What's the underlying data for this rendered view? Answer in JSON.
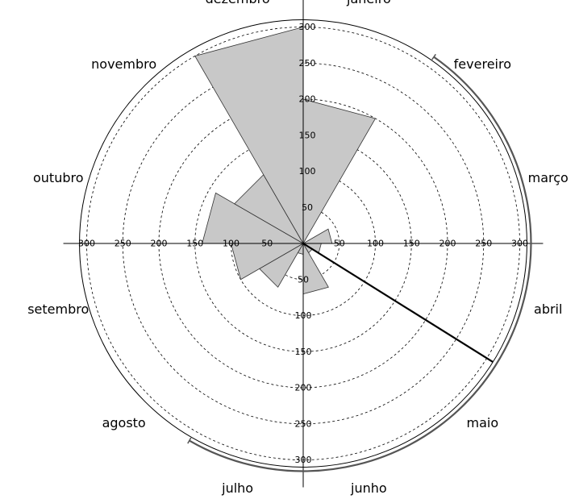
{
  "chart_data": {
    "type": "polar-bar",
    "title": "",
    "direction": "clockwise",
    "start_angle_deg": 0,
    "categories": [
      "janeiro",
      "fevereiro",
      "março",
      "abril",
      "maio",
      "junho",
      "julho",
      "agosto",
      "setembro",
      "outubro",
      "novembro",
      "dezembro"
    ],
    "values": [
      200,
      0,
      40,
      25,
      15,
      70,
      15,
      70,
      100,
      140,
      110,
      300
    ],
    "radial_range": [
      0,
      300
    ],
    "radial_ticks": [
      50,
      100,
      150,
      200,
      250,
      300
    ],
    "outer_circle": 310,
    "grid": "dashed circles",
    "fill_color": "#c8c8c8",
    "edge_color": "#333333",
    "direction_line": {
      "angle_deg": 122,
      "length": 310,
      "color": "#000000"
    },
    "arc_indicator": {
      "from_deg": 35,
      "to_deg": 210,
      "color": "#555555"
    }
  }
}
